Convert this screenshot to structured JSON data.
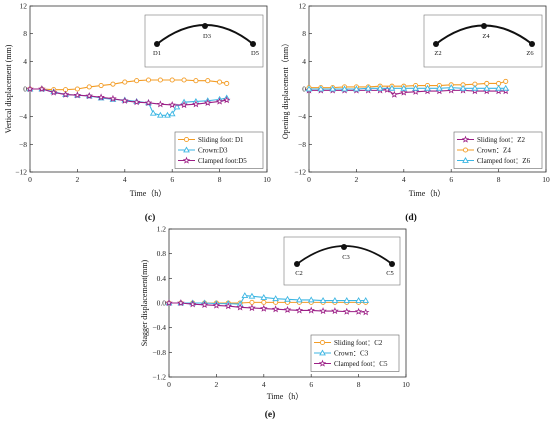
{
  "chart_data": [
    {
      "type": "line",
      "panel_label": "(c)",
      "xlabel": "Time（h）",
      "ylabel": "Vertical displacement (mm)",
      "xlim": [
        0,
        10
      ],
      "ylim": [
        -12,
        12
      ],
      "xticks": [
        0,
        2,
        4,
        6,
        8,
        10
      ],
      "yticks": [
        -12,
        -8,
        -4,
        0,
        4,
        8,
        12
      ],
      "yticklabels": [
        "−12",
        "−8",
        "−4",
        "0",
        "4",
        "8",
        "12"
      ],
      "grid": false,
      "legend_position": "bottom-right",
      "series": [
        {
          "name": "Sliding foot: D1",
          "color": "#f39c25",
          "marker": "circle",
          "x": [
            0,
            0.5,
            1,
            1.5,
            2,
            2.5,
            3,
            3.5,
            4,
            4.5,
            5,
            5.5,
            6,
            6.5,
            7,
            7.5,
            8,
            8.3
          ],
          "y": [
            0,
            0,
            -0.1,
            -0.1,
            0,
            0.3,
            0.5,
            0.7,
            1,
            1.2,
            1.3,
            1.3,
            1.3,
            1.3,
            1.2,
            1.2,
            1.0,
            0.8
          ]
        },
        {
          "name": "Crown:D3",
          "color": "#3cb6e3",
          "marker": "triangle",
          "x": [
            0,
            0.5,
            1,
            1.5,
            2,
            2.5,
            3,
            3.5,
            4,
            4.5,
            5,
            5.2,
            5.5,
            5.8,
            6,
            6.2,
            6.5,
            7,
            7.5,
            8,
            8.3
          ],
          "y": [
            0,
            0,
            -0.4,
            -0.8,
            -0.9,
            -1,
            -1.3,
            -1.5,
            -1.6,
            -1.8,
            -2,
            -3.5,
            -3.8,
            -3.8,
            -3.6,
            -2.6,
            -1.9,
            -1.8,
            -1.7,
            -1.5,
            -1.3
          ]
        },
        {
          "name": "Clamped foot:D5",
          "color": "#9c1f86",
          "marker": "star",
          "x": [
            0,
            0.5,
            1,
            1.5,
            2,
            2.5,
            3,
            3.5,
            4,
            4.5,
            5,
            5.5,
            6,
            6.5,
            7,
            7.5,
            8,
            8.3
          ],
          "y": [
            0,
            0,
            -0.5,
            -0.8,
            -0.9,
            -1,
            -1.2,
            -1.4,
            -1.7,
            -1.9,
            -2,
            -2.2,
            -2.3,
            -2.3,
            -2.2,
            -2,
            -1.8,
            -1.6
          ]
        }
      ],
      "arch_labels": [
        "D1",
        "D3",
        "D5"
      ]
    },
    {
      "type": "line",
      "panel_label": "(d)",
      "xlabel": "Time（h）",
      "ylabel": "Opening displacement（mm）",
      "xlim": [
        0,
        10
      ],
      "ylim": [
        -12,
        12
      ],
      "xticks": [
        0,
        2,
        4,
        6,
        8,
        10
      ],
      "yticks": [
        -12,
        -8,
        -4,
        0,
        4,
        8,
        12
      ],
      "yticklabels": [
        "−12",
        "−8",
        "−4",
        "0",
        "4",
        "8",
        "12"
      ],
      "grid": false,
      "legend_position": "bottom-right",
      "series": [
        {
          "name": "Sliding foot：Z2",
          "color": "#9c1f86",
          "marker": "star",
          "x": [
            0,
            0.5,
            1,
            1.5,
            2,
            2.5,
            3,
            3.3,
            3.6,
            4,
            4.5,
            5,
            5.5,
            6,
            6.5,
            7,
            7.5,
            8,
            8.3
          ],
          "y": [
            -0.2,
            -0.2,
            -0.2,
            -0.2,
            -0.2,
            -0.2,
            -0.2,
            -0.1,
            -0.8,
            -0.5,
            -0.4,
            -0.3,
            -0.3,
            -0.2,
            -0.2,
            -0.3,
            -0.3,
            -0.3,
            -0.3
          ]
        },
        {
          "name": "Crown：Z4",
          "color": "#f39c25",
          "marker": "circle",
          "x": [
            0,
            0.5,
            1,
            1.5,
            2,
            2.5,
            3,
            3.5,
            4,
            4.5,
            5,
            5.5,
            6,
            6.5,
            7,
            7.5,
            8,
            8.3
          ],
          "y": [
            0.2,
            0.2,
            0.2,
            0.3,
            0.3,
            0.3,
            0.4,
            0.4,
            0.4,
            0.5,
            0.5,
            0.5,
            0.6,
            0.6,
            0.7,
            0.8,
            0.8,
            1.1
          ]
        },
        {
          "name": "Clamped foot：Z6",
          "color": "#3cb6e3",
          "marker": "triangle",
          "x": [
            0,
            0.5,
            1,
            1.5,
            2,
            2.5,
            3,
            3.5,
            4,
            4.5,
            5,
            5.5,
            6,
            6.5,
            7,
            7.5,
            8,
            8.3
          ],
          "y": [
            0,
            0,
            0,
            0,
            0,
            0.1,
            0.1,
            0.1,
            0.1,
            0.1,
            0.1,
            0.1,
            0.2,
            0.1,
            0.1,
            0.1,
            0.1,
            0.1
          ]
        }
      ],
      "arch_labels": [
        "Z2",
        "Z4",
        "Z6"
      ]
    },
    {
      "type": "line",
      "panel_label": "(e)",
      "xlabel": "Time（h）",
      "ylabel": "Stagger displacement(mm)",
      "xlim": [
        0,
        10
      ],
      "ylim": [
        -1.2,
        1.2
      ],
      "xticks": [
        0,
        2,
        4,
        6,
        8,
        10
      ],
      "yticks": [
        -1.2,
        -0.8,
        -0.4,
        0,
        0.4,
        0.8,
        1.2
      ],
      "yticklabels": [
        "−1.2",
        "−0.8",
        "−0.4",
        "0.0",
        "0.4",
        "0.8",
        "1.2"
      ],
      "grid": false,
      "legend_position": "bottom-right",
      "series": [
        {
          "name": "Sliding foot：C2",
          "color": "#f39c25",
          "marker": "circle",
          "x": [
            0,
            0.5,
            1,
            1.5,
            2,
            2.5,
            3,
            3.5,
            4,
            4.5,
            5,
            5.5,
            6,
            6.5,
            7,
            7.5,
            8,
            8.3
          ],
          "y": [
            0,
            0,
            0,
            0,
            0,
            0,
            0,
            0.01,
            0.01,
            0.01,
            0.01,
            0.01,
            0.01,
            0.01,
            0.01,
            0.01,
            0.01,
            0.01
          ]
        },
        {
          "name": "Crown：C3",
          "color": "#3cb6e3",
          "marker": "triangle",
          "x": [
            0,
            0.5,
            1,
            1.5,
            2,
            2.5,
            3,
            3.2,
            3.5,
            4,
            4.5,
            5,
            5.5,
            6,
            6.5,
            7,
            7.5,
            8,
            8.3
          ],
          "y": [
            0,
            0,
            0,
            0,
            -0.01,
            -0.01,
            -0.02,
            0.12,
            0.11,
            0.09,
            0.07,
            0.06,
            0.05,
            0.05,
            0.04,
            0.04,
            0.04,
            0.04,
            0.04
          ]
        },
        {
          "name": "Clamped foot：C5",
          "color": "#9c1f86",
          "marker": "star",
          "x": [
            0,
            0.5,
            1,
            1.5,
            2,
            2.5,
            3,
            3.5,
            4,
            4.5,
            5,
            5.5,
            6,
            6.5,
            7,
            7.5,
            8,
            8.3
          ],
          "y": [
            0,
            0,
            -0.02,
            -0.03,
            -0.04,
            -0.05,
            -0.07,
            -0.08,
            -0.09,
            -0.1,
            -0.11,
            -0.12,
            -0.12,
            -0.13,
            -0.13,
            -0.14,
            -0.14,
            -0.15
          ]
        }
      ],
      "arch_labels": [
        "C2",
        "C3",
        "C5"
      ]
    }
  ]
}
